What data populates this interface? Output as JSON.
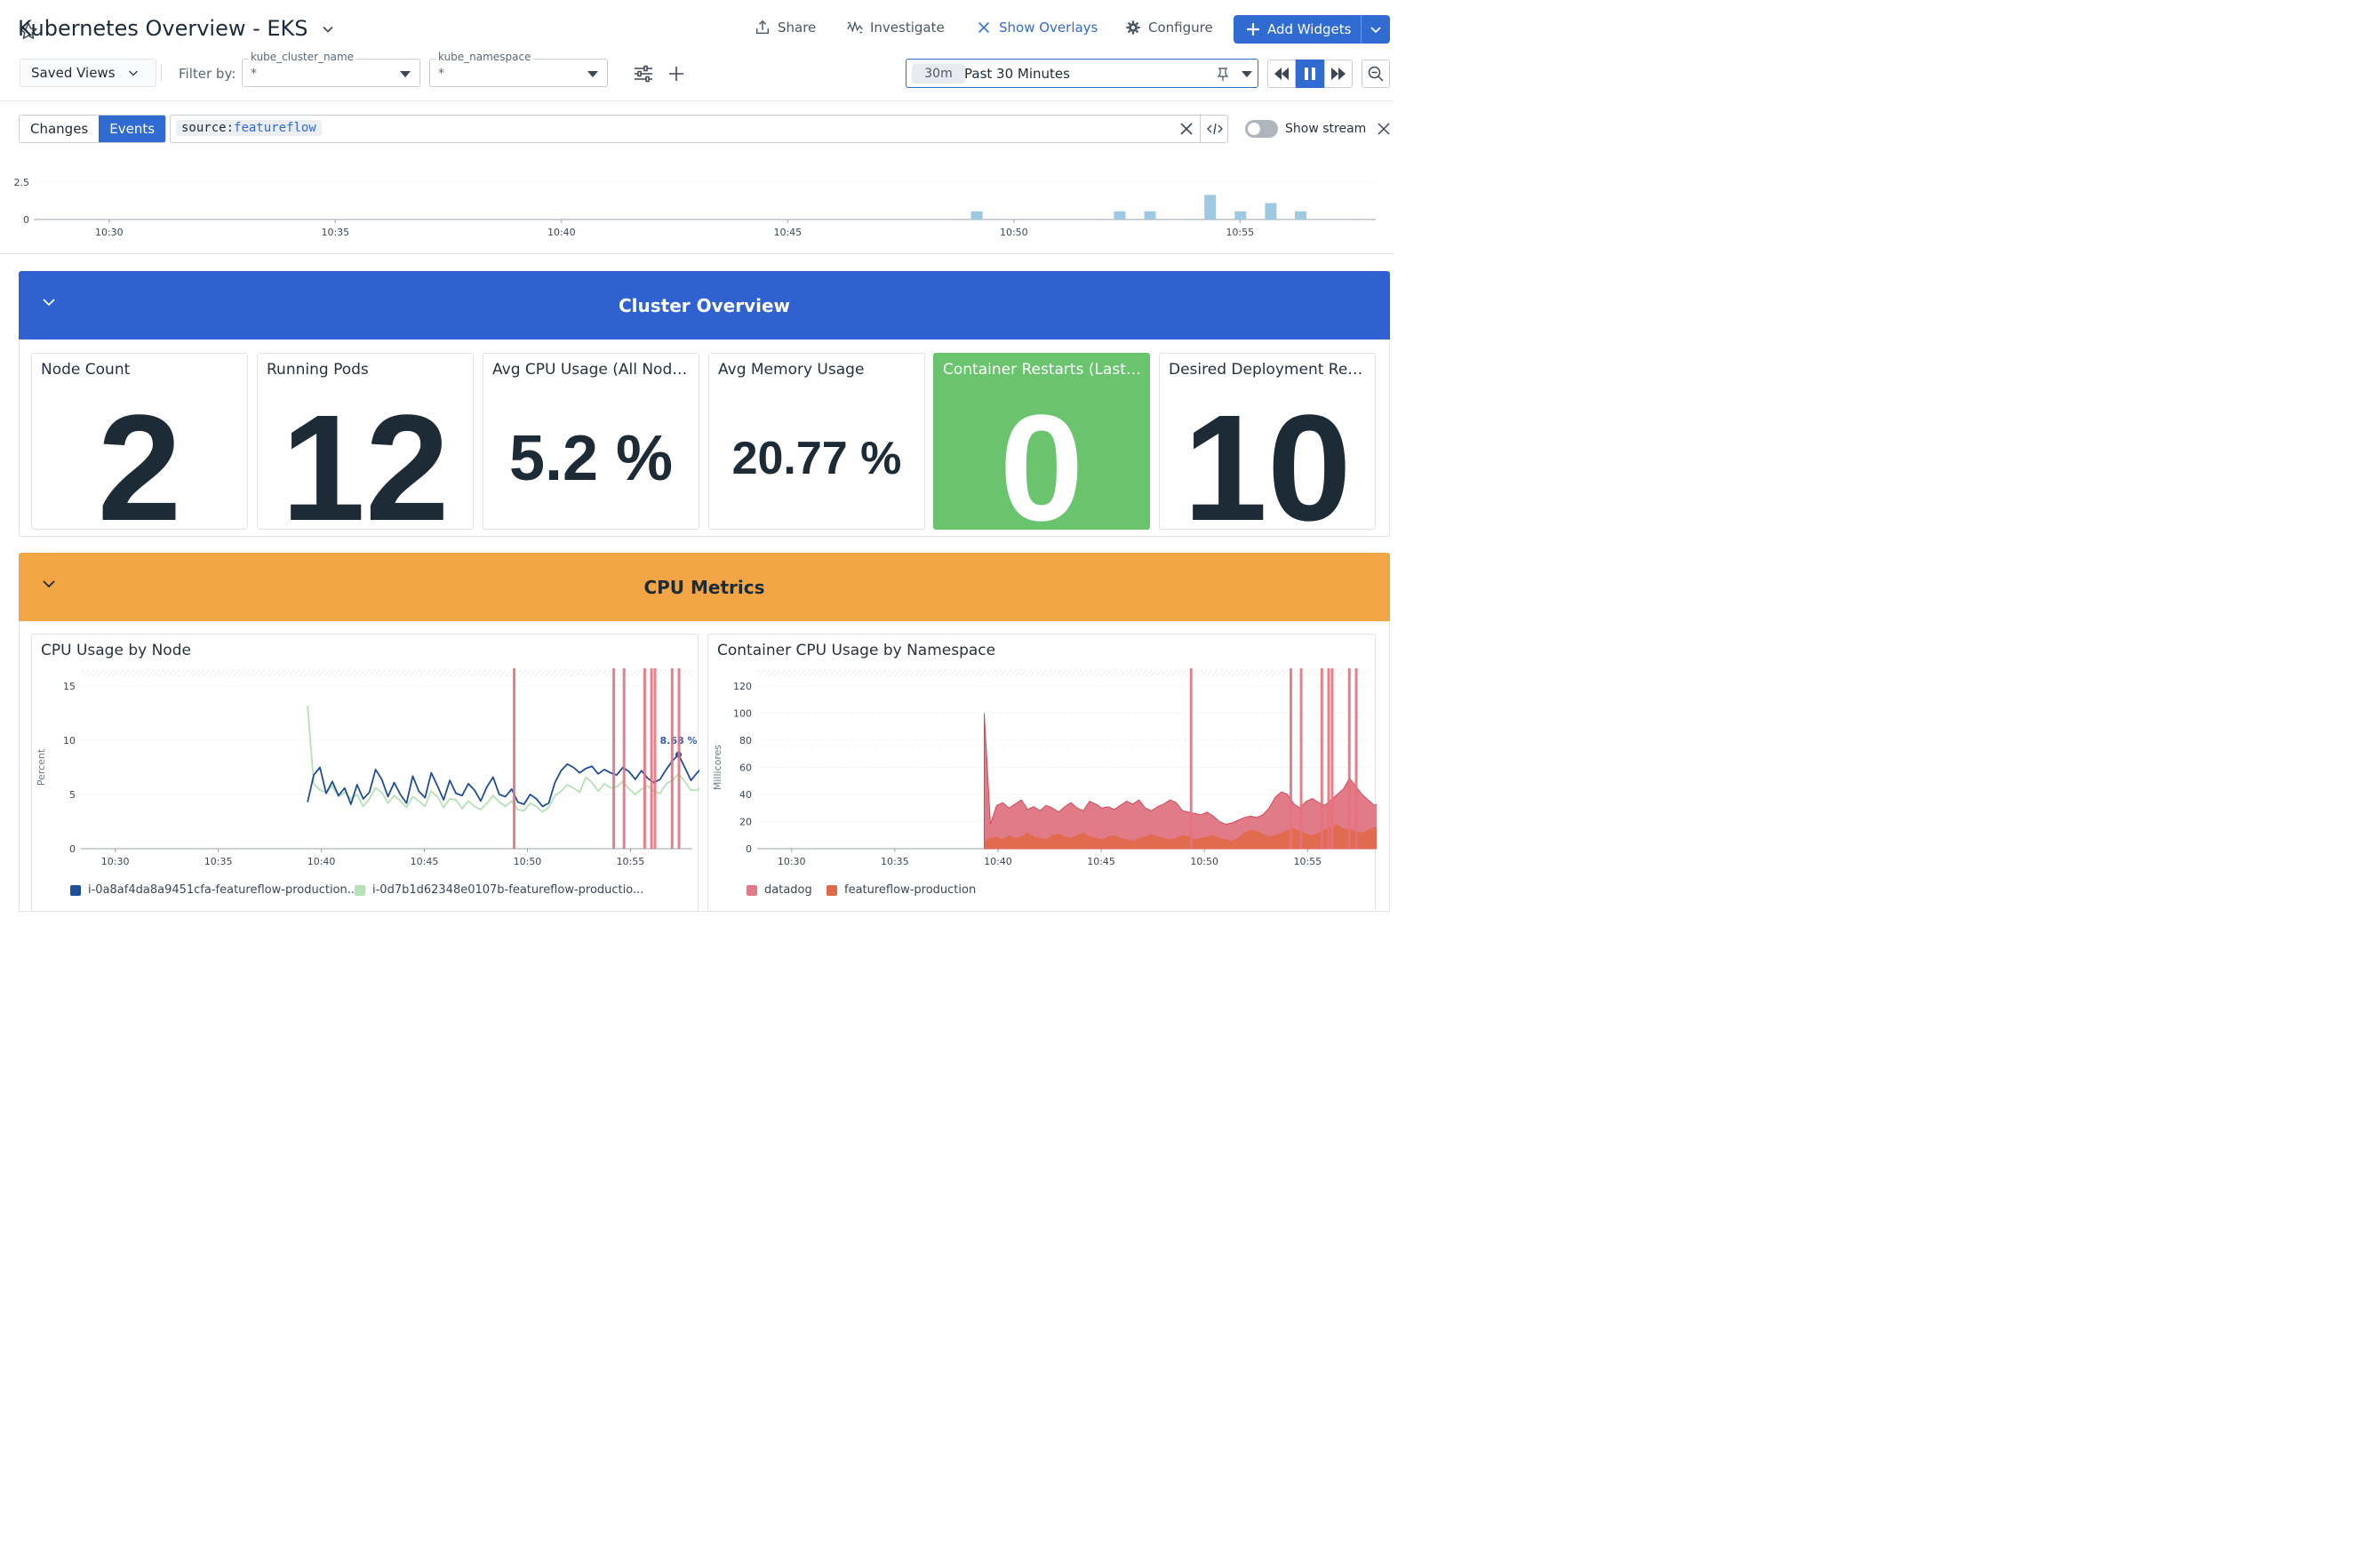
{
  "header": {
    "title": "Kubernetes Overview - EKS",
    "share": "Share",
    "investigate": "Investigate",
    "show_overlays": "Show Overlays",
    "configure": "Configure",
    "add_widgets": "Add Widgets"
  },
  "filters": {
    "saved_views": "Saved Views",
    "filter_by": "Filter by:",
    "vars": [
      {
        "label": "kube_cluster_name",
        "value": "*"
      },
      {
        "label": "kube_namespace",
        "value": "*"
      }
    ]
  },
  "time": {
    "badge": "30m",
    "label": "Past 30 Minutes"
  },
  "events": {
    "tabs": [
      "Changes",
      "Events"
    ],
    "active_tab": "Events",
    "query_key": "source",
    "query_value": "featureflow",
    "show_stream": "Show stream"
  },
  "event_histogram": {
    "type": "bar",
    "ytick_labels": [
      "2.5",
      "0"
    ],
    "x_ticks": [
      "10:30",
      "10:35",
      "10:40",
      "10:45",
      "10:50",
      "10:55"
    ],
    "ylim": [
      0,
      4
    ],
    "bars": [
      {
        "t": 10.4917,
        "v": 1
      },
      {
        "t": 10.5233,
        "v": 1
      },
      {
        "t": 10.53,
        "v": 1
      },
      {
        "t": 10.5433,
        "v": 3
      },
      {
        "t": 10.55,
        "v": 1
      },
      {
        "t": 10.5567,
        "v": 2
      },
      {
        "t": 10.5633,
        "v": 1
      }
    ],
    "color": "#9ec9e2"
  },
  "sections": {
    "cluster": {
      "title": "Cluster Overview",
      "color": "#2f62d0"
    },
    "cpu": {
      "title": "CPU Metrics",
      "color": "#f2a544"
    }
  },
  "stats": [
    {
      "title": "Node Count",
      "value": "2"
    },
    {
      "title": "Running Pods",
      "value": "12"
    },
    {
      "title": "Avg CPU Usage (All Nodes)",
      "value": "5.2",
      "unit": "%"
    },
    {
      "title": "Avg Memory Usage",
      "value": "20.77",
      "unit": "%"
    },
    {
      "title": "Container Restarts (Last ...",
      "value": "0",
      "bg": "#6ac46e"
    },
    {
      "title": "Desired Deployment Repl...",
      "value": "10"
    }
  ],
  "chart_data": [
    {
      "type": "line",
      "title": "CPU Usage by Node",
      "ylabel": "Percent",
      "ylim": [
        0,
        15
      ],
      "yticks": [
        "15",
        "10",
        "5",
        "0"
      ],
      "x_ticks": [
        "10:30",
        "10:35",
        "10:40",
        "10:45",
        "10:50",
        "10:55"
      ],
      "annotation": "8.68 %",
      "event_lines": [
        "10:49:20",
        "10:54:10",
        "10:54:40",
        "10:55:40",
        "10:56:00",
        "10:56:10",
        "10:57:00",
        "10:57:20"
      ],
      "series": [
        {
          "name": "i-0a8af4da8a9451cfa-featureflow-production...",
          "color": "#1f4e99",
          "start": "10:39:20",
          "values": [
            4.3,
            6.8,
            7.5,
            5.1,
            6.2,
            4.9,
            5.6,
            4.1,
            5.9,
            4.6,
            5.2,
            7.3,
            6.4,
            4.8,
            6.1,
            5.0,
            4.2,
            6.7,
            5.3,
            4.7,
            7.0,
            5.8,
            4.5,
            6.3,
            5.1,
            4.9,
            6.0,
            5.4,
            4.4,
            5.7,
            6.6,
            5.0,
            4.8,
            5.5,
            4.3,
            4.1,
            5.0,
            4.6,
            3.9,
            4.2,
            6.1,
            7.2,
            7.8,
            7.5,
            7.0,
            7.4,
            7.6,
            6.9,
            7.3,
            7.0,
            6.8,
            7.5,
            7.1,
            6.4,
            7.2,
            6.5,
            6.1,
            6.4,
            7.3,
            8.1,
            8.68,
            7.5,
            6.3,
            7.0,
            7.6,
            7.2,
            5.9,
            6.3,
            4.8,
            5.6,
            4.6,
            4.0,
            4.4,
            3.7,
            4.3,
            3.6,
            4.8,
            5.4,
            4.1,
            3.6,
            4.4,
            3.7,
            3.6,
            4.5,
            3.8,
            5.4,
            4.3,
            3.8
          ]
        },
        {
          "name": "i-0d7b1d62348e0107b-featureflow-productio...",
          "color": "#b6e0b8",
          "start": "10:39:20",
          "values": [
            13.2,
            6.0,
            5.4,
            5.2,
            5.8,
            4.8,
            5.2,
            4.6,
            5.0,
            3.9,
            4.6,
            5.6,
            5.2,
            4.2,
            4.9,
            4.4,
            3.8,
            4.8,
            4.4,
            3.9,
            5.3,
            4.8,
            3.8,
            4.6,
            4.5,
            3.7,
            4.4,
            3.9,
            3.6,
            4.2,
            4.9,
            4.3,
            3.9,
            4.4,
            3.6,
            3.5,
            4.2,
            3.9,
            3.4,
            3.8,
            4.9,
            5.3,
            5.9,
            5.6,
            5.2,
            6.6,
            6.1,
            5.3,
            6.0,
            5.6,
            5.7,
            6.2,
            5.5,
            5.0,
            5.5,
            5.8,
            5.3,
            5.1,
            6.0,
            6.3,
            6.9,
            6.2,
            5.4,
            5.4,
            5.8,
            5.0,
            4.6,
            5.4,
            4.3,
            4.7,
            3.9,
            3.7,
            4.1,
            3.6,
            3.9,
            3.5,
            4.1,
            4.6,
            3.6,
            3.4,
            3.9,
            3.5,
            3.4,
            3.8,
            3.5,
            4.6,
            3.8,
            3.5
          ]
        }
      ]
    },
    {
      "type": "area",
      "title": "Container CPU Usage by Namespace",
      "ylabel": "Millicores",
      "ylim": [
        0,
        120
      ],
      "yticks": [
        "120",
        "100",
        "80",
        "60",
        "40",
        "20",
        "0"
      ],
      "x_ticks": [
        "10:30",
        "10:35",
        "10:40",
        "10:45",
        "10:50",
        "10:55"
      ],
      "event_lines": [
        "10:49:20",
        "10:54:10",
        "10:54:40",
        "10:55:40",
        "10:56:00",
        "10:56:10",
        "10:57:00",
        "10:57:20"
      ],
      "series": [
        {
          "name": "featureflow-production",
          "color": "#e06a4c",
          "start": "10:39:20",
          "values": [
            6,
            8,
            9,
            7,
            10,
            8,
            9,
            12,
            9,
            8,
            7,
            10,
            11,
            9,
            8,
            10,
            12,
            9,
            8,
            7,
            9,
            10,
            8,
            7,
            6,
            8,
            9,
            11,
            9,
            8,
            7,
            8,
            10,
            9,
            7,
            8,
            9,
            10,
            8,
            7,
            6,
            8,
            12,
            14,
            13,
            11,
            9,
            10,
            12,
            14,
            15,
            13,
            11,
            10,
            12,
            14,
            16,
            18,
            15,
            14,
            13,
            12,
            14,
            16,
            15,
            13,
            11,
            12,
            14,
            13,
            12,
            11,
            10,
            11,
            12,
            13,
            11,
            10,
            9,
            8,
            9,
            10,
            9,
            8,
            9,
            10,
            11,
            8
          ]
        },
        {
          "name": "datadog",
          "color": "#e07b87",
          "start": "10:39:20",
          "values": [
            100,
            18,
            32,
            34,
            30,
            33,
            36,
            29,
            31,
            28,
            32,
            30,
            27,
            31,
            34,
            30,
            28,
            35,
            33,
            30,
            31,
            29,
            32,
            35,
            33,
            36,
            30,
            28,
            31,
            33,
            36,
            34,
            28,
            27,
            26,
            25,
            27,
            24,
            20,
            18,
            19,
            21,
            23,
            24,
            23,
            25,
            30,
            38,
            42,
            40,
            33,
            30,
            35,
            37,
            34,
            32,
            36,
            40,
            44,
            52,
            46,
            40,
            36,
            32,
            34,
            36,
            33,
            30,
            28,
            32,
            29,
            25,
            31,
            27,
            24,
            28,
            22,
            19,
            23,
            18,
            20,
            21,
            16,
            18,
            19,
            14,
            17,
            18
          ]
        }
      ]
    }
  ]
}
